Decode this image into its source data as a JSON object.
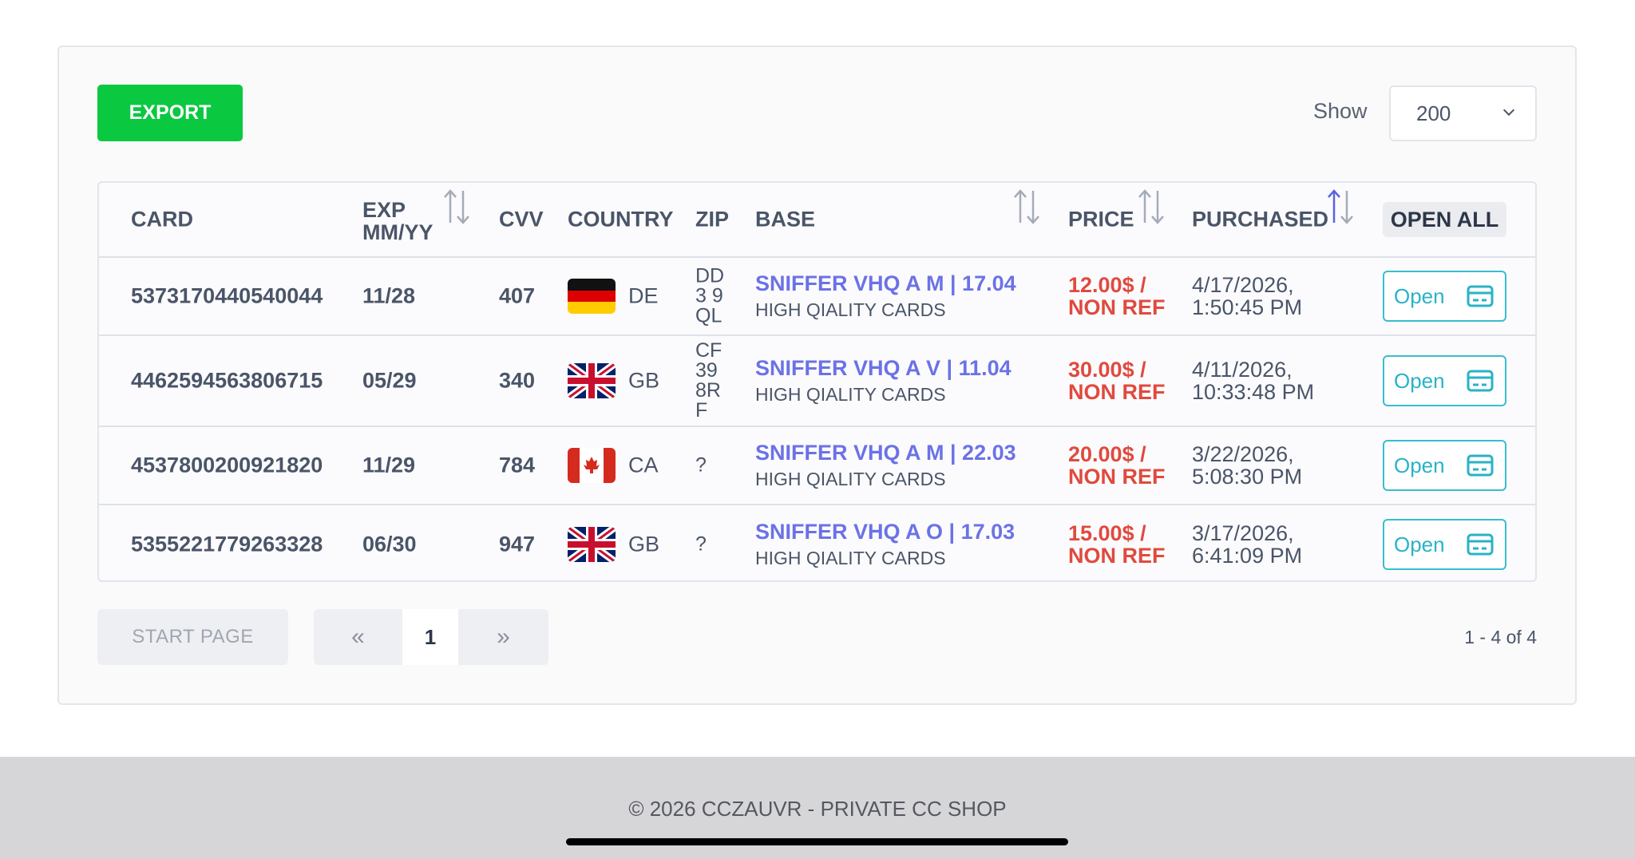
{
  "toolbar": {
    "export_label": "EXPORT",
    "show_label": "Show",
    "page_size": "200"
  },
  "table": {
    "headers": {
      "card": "CARD",
      "exp_line1": "EXP",
      "exp_line2": "MM/YY",
      "cvv": "CVV",
      "country": "COUNTRY",
      "zip": "ZIP",
      "base": "BASE",
      "price": "PRICE",
      "purchased": "PURCHASED",
      "open_all": "OPEN ALL"
    },
    "rows": [
      {
        "card": "5373170440540044",
        "exp": "11/28",
        "cvv": "407",
        "flag": "de",
        "country": "DE",
        "zip": [
          "DD",
          "3 9",
          "QL"
        ],
        "base": "SNIFFER VHQ A M | 17.04",
        "base_sub": "HIGH QIALITY CARDS",
        "price": "12.00$ /",
        "price_note": "NON REF",
        "date": "4/17/2026,",
        "time": "1:50:45 PM",
        "open": "Open"
      },
      {
        "card": "4462594563806715",
        "exp": "05/29",
        "cvv": "340",
        "flag": "gb",
        "country": "GB",
        "zip": [
          "CF",
          "39",
          "8R",
          "F"
        ],
        "base": "SNIFFER VHQ A V | 11.04",
        "base_sub": "HIGH QIALITY CARDS",
        "price": "30.00$ /",
        "price_note": "NON REF",
        "date": "4/11/2026,",
        "time": "10:33:48 PM",
        "open": "Open"
      },
      {
        "card": "4537800200921820",
        "exp": "11/29",
        "cvv": "784",
        "flag": "ca",
        "country": "CA",
        "zip": [
          "?"
        ],
        "base": "SNIFFER VHQ A M | 22.03",
        "base_sub": "HIGH QIALITY CARDS",
        "price": "20.00$ /",
        "price_note": "NON REF",
        "date": "3/22/2026,",
        "time": "5:08:30 PM",
        "open": "Open"
      },
      {
        "card": "5355221779263328",
        "exp": "06/30",
        "cvv": "947",
        "flag": "gb",
        "country": "GB",
        "zip": [
          "?"
        ],
        "base": "SNIFFER VHQ A O | 17.03",
        "base_sub": "HIGH QIALITY CARDS",
        "price": "15.00$ /",
        "price_note": "NON REF",
        "date": "3/17/2026,",
        "time": "6:41:09 PM",
        "open": "Open"
      }
    ]
  },
  "pagination": {
    "start_page": "START PAGE",
    "prev": "«",
    "current": "1",
    "next": "»",
    "range": "1 - 4 of 4"
  },
  "footer": {
    "text": "© 2026 CCZAUVR - PRIVATE CC SHOP"
  },
  "colors": {
    "export": "#0ac840",
    "base_link": "#6b72e6",
    "price": "#e04a3e",
    "open_button": "#38bdcf"
  }
}
